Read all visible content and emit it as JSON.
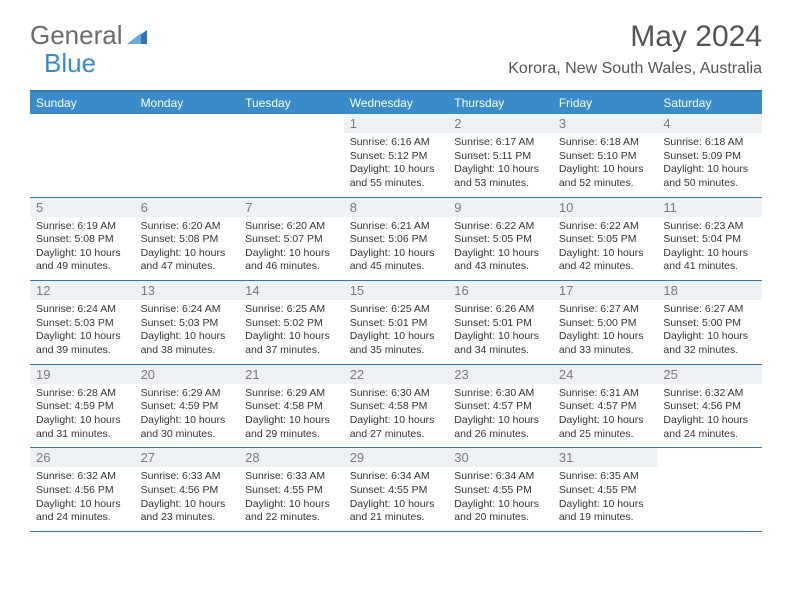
{
  "logo": {
    "word1": "General",
    "word2": "Blue"
  },
  "title": "May 2024",
  "location": "Korora, New South Wales, Australia",
  "colors": {
    "header_bg": "#3a8bc9",
    "border": "#2f78b5",
    "daynum_bg": "#eef1f4",
    "logo_gray": "#6b6b6b",
    "logo_blue": "#3a8bc9",
    "text": "#333333"
  },
  "day_names": [
    "Sunday",
    "Monday",
    "Tuesday",
    "Wednesday",
    "Thursday",
    "Friday",
    "Saturday"
  ],
  "layout": {
    "first_weekday_index": 3,
    "days_in_month": 31,
    "columns": 7
  },
  "days": [
    {
      "n": 1,
      "sunrise": "6:16 AM",
      "sunset": "5:12 PM",
      "daylight": "10 hours and 55 minutes."
    },
    {
      "n": 2,
      "sunrise": "6:17 AM",
      "sunset": "5:11 PM",
      "daylight": "10 hours and 53 minutes."
    },
    {
      "n": 3,
      "sunrise": "6:18 AM",
      "sunset": "5:10 PM",
      "daylight": "10 hours and 52 minutes."
    },
    {
      "n": 4,
      "sunrise": "6:18 AM",
      "sunset": "5:09 PM",
      "daylight": "10 hours and 50 minutes."
    },
    {
      "n": 5,
      "sunrise": "6:19 AM",
      "sunset": "5:08 PM",
      "daylight": "10 hours and 49 minutes."
    },
    {
      "n": 6,
      "sunrise": "6:20 AM",
      "sunset": "5:08 PM",
      "daylight": "10 hours and 47 minutes."
    },
    {
      "n": 7,
      "sunrise": "6:20 AM",
      "sunset": "5:07 PM",
      "daylight": "10 hours and 46 minutes."
    },
    {
      "n": 8,
      "sunrise": "6:21 AM",
      "sunset": "5:06 PM",
      "daylight": "10 hours and 45 minutes."
    },
    {
      "n": 9,
      "sunrise": "6:22 AM",
      "sunset": "5:05 PM",
      "daylight": "10 hours and 43 minutes."
    },
    {
      "n": 10,
      "sunrise": "6:22 AM",
      "sunset": "5:05 PM",
      "daylight": "10 hours and 42 minutes."
    },
    {
      "n": 11,
      "sunrise": "6:23 AM",
      "sunset": "5:04 PM",
      "daylight": "10 hours and 41 minutes."
    },
    {
      "n": 12,
      "sunrise": "6:24 AM",
      "sunset": "5:03 PM",
      "daylight": "10 hours and 39 minutes."
    },
    {
      "n": 13,
      "sunrise": "6:24 AM",
      "sunset": "5:03 PM",
      "daylight": "10 hours and 38 minutes."
    },
    {
      "n": 14,
      "sunrise": "6:25 AM",
      "sunset": "5:02 PM",
      "daylight": "10 hours and 37 minutes."
    },
    {
      "n": 15,
      "sunrise": "6:25 AM",
      "sunset": "5:01 PM",
      "daylight": "10 hours and 35 minutes."
    },
    {
      "n": 16,
      "sunrise": "6:26 AM",
      "sunset": "5:01 PM",
      "daylight": "10 hours and 34 minutes."
    },
    {
      "n": 17,
      "sunrise": "6:27 AM",
      "sunset": "5:00 PM",
      "daylight": "10 hours and 33 minutes."
    },
    {
      "n": 18,
      "sunrise": "6:27 AM",
      "sunset": "5:00 PM",
      "daylight": "10 hours and 32 minutes."
    },
    {
      "n": 19,
      "sunrise": "6:28 AM",
      "sunset": "4:59 PM",
      "daylight": "10 hours and 31 minutes."
    },
    {
      "n": 20,
      "sunrise": "6:29 AM",
      "sunset": "4:59 PM",
      "daylight": "10 hours and 30 minutes."
    },
    {
      "n": 21,
      "sunrise": "6:29 AM",
      "sunset": "4:58 PM",
      "daylight": "10 hours and 29 minutes."
    },
    {
      "n": 22,
      "sunrise": "6:30 AM",
      "sunset": "4:58 PM",
      "daylight": "10 hours and 27 minutes."
    },
    {
      "n": 23,
      "sunrise": "6:30 AM",
      "sunset": "4:57 PM",
      "daylight": "10 hours and 26 minutes."
    },
    {
      "n": 24,
      "sunrise": "6:31 AM",
      "sunset": "4:57 PM",
      "daylight": "10 hours and 25 minutes."
    },
    {
      "n": 25,
      "sunrise": "6:32 AM",
      "sunset": "4:56 PM",
      "daylight": "10 hours and 24 minutes."
    },
    {
      "n": 26,
      "sunrise": "6:32 AM",
      "sunset": "4:56 PM",
      "daylight": "10 hours and 24 minutes."
    },
    {
      "n": 27,
      "sunrise": "6:33 AM",
      "sunset": "4:56 PM",
      "daylight": "10 hours and 23 minutes."
    },
    {
      "n": 28,
      "sunrise": "6:33 AM",
      "sunset": "4:55 PM",
      "daylight": "10 hours and 22 minutes."
    },
    {
      "n": 29,
      "sunrise": "6:34 AM",
      "sunset": "4:55 PM",
      "daylight": "10 hours and 21 minutes."
    },
    {
      "n": 30,
      "sunrise": "6:34 AM",
      "sunset": "4:55 PM",
      "daylight": "10 hours and 20 minutes."
    },
    {
      "n": 31,
      "sunrise": "6:35 AM",
      "sunset": "4:55 PM",
      "daylight": "10 hours and 19 minutes."
    }
  ],
  "labels": {
    "sunrise_prefix": "Sunrise: ",
    "sunset_prefix": "Sunset: ",
    "daylight_prefix": "Daylight: "
  }
}
